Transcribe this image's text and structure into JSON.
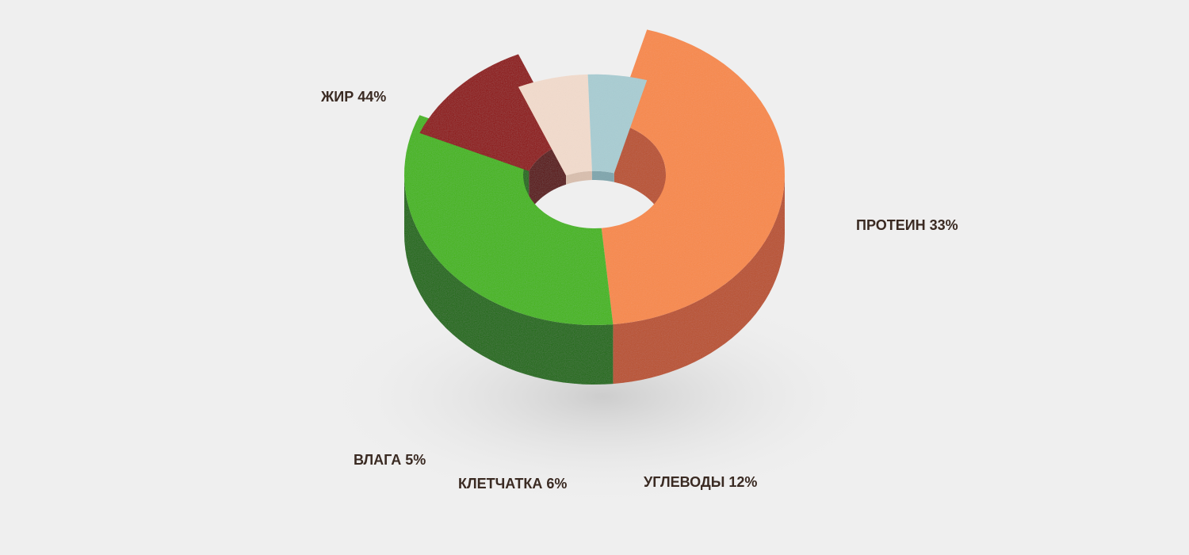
{
  "chart_data": {
    "type": "pie",
    "style": "3d-donut",
    "legend": "none",
    "slices": [
      {
        "label": "ЖИР",
        "value": 44,
        "display": "ЖИР 44%",
        "color": "#f8894a",
        "side_color": "#b9512e"
      },
      {
        "label": "ПРОТЕИН",
        "value": 33,
        "display": "ПРОТЕИН 33%",
        "color": "#45b512",
        "side_color": "#1f6a0c"
      },
      {
        "label": "УГЛЕВОДЫ",
        "value": 12,
        "display": "УГЛЕВОДЫ 12%",
        "color": "#8e0e06",
        "side_color": "#5a0703"
      },
      {
        "label": "КЛЕТЧАТКА",
        "value": 6,
        "display": "КЛЕТЧАТКА 6%",
        "color": "#f3dccd",
        "side_color": "#d9bfae"
      },
      {
        "label": "ВЛАГА",
        "value": 5,
        "display": "ВЛАГА 5%",
        "color": "#a9cdd3",
        "side_color": "#7fa6ad"
      }
    ]
  }
}
